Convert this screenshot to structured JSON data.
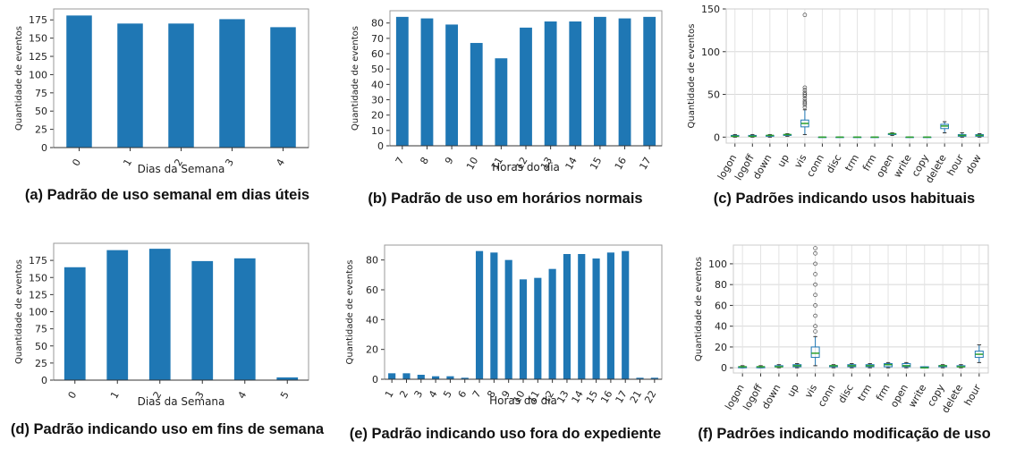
{
  "chart_data": [
    {
      "type": "bar",
      "caption": "(a) Padrão de uso semanal em dias úteis",
      "ylabel": "Quantidade de eventos",
      "xlabel": "Dias da Semana",
      "categories": [
        "0",
        "1",
        "2",
        "3",
        "4"
      ],
      "values": [
        181,
        170,
        170,
        176,
        165
      ],
      "color": "#1f77b4",
      "ylim": [
        0,
        190
      ],
      "yticks": [
        0,
        25,
        50,
        75,
        100,
        125,
        150,
        175
      ],
      "grid": false
    },
    {
      "type": "bar",
      "caption": "(b) Padrão de uso em horários normais",
      "ylabel": "Quantidade de eventos",
      "xlabel": "Horas do dia",
      "categories": [
        "7",
        "8",
        "9",
        "10",
        "11",
        "12",
        "13",
        "14",
        "15",
        "16",
        "17"
      ],
      "values": [
        84,
        83,
        79,
        67,
        57,
        77,
        81,
        81,
        84,
        83,
        84
      ],
      "color": "#1f77b4",
      "ylim": [
        0,
        88
      ],
      "yticks": [
        0,
        10,
        20,
        30,
        40,
        50,
        60,
        70,
        80
      ],
      "grid": false
    },
    {
      "type": "box",
      "caption": "(c) Padrões indicando usos habituais",
      "ylabel": "Quantidade de eventos",
      "categories": [
        "logon",
        "logoff",
        "down",
        "up",
        "vis",
        "conn",
        "disc",
        "trm",
        "frm",
        "open",
        "write",
        "copy",
        "delete",
        "hour",
        "dow"
      ],
      "boxes": [
        {
          "whislo": 0,
          "q1": 1,
          "med": 1,
          "q3": 2,
          "whishi": 3,
          "fliers": []
        },
        {
          "whislo": 0,
          "q1": 1,
          "med": 1,
          "q3": 2,
          "whishi": 3,
          "fliers": []
        },
        {
          "whislo": 0,
          "q1": 1,
          "med": 2,
          "q3": 2,
          "whishi": 3,
          "fliers": []
        },
        {
          "whislo": 1,
          "q1": 2,
          "med": 3,
          "q3": 3,
          "whishi": 4,
          "fliers": []
        },
        {
          "whislo": 3,
          "q1": 12,
          "med": 16,
          "q3": 20,
          "whishi": 32,
          "fliers": [
            35,
            38,
            40,
            42,
            45,
            48,
            50,
            52,
            55,
            58,
            143
          ]
        },
        {
          "whislo": 0,
          "q1": 0,
          "med": 0,
          "q3": 0,
          "whishi": 0,
          "fliers": []
        },
        {
          "whislo": 0,
          "q1": 0,
          "med": 0,
          "q3": 0,
          "whishi": 0,
          "fliers": []
        },
        {
          "whislo": 0,
          "q1": 0,
          "med": 0,
          "q3": 0,
          "whishi": 0,
          "fliers": []
        },
        {
          "whislo": 0,
          "q1": 0,
          "med": 0,
          "q3": 0,
          "whishi": 0,
          "fliers": []
        },
        {
          "whislo": 2,
          "q1": 3,
          "med": 4,
          "q3": 4,
          "whishi": 5,
          "fliers": []
        },
        {
          "whislo": 0,
          "q1": 0,
          "med": 0,
          "q3": 0,
          "whishi": 0,
          "fliers": []
        },
        {
          "whislo": 0,
          "q1": 0,
          "med": 0,
          "q3": 0,
          "whishi": 0,
          "fliers": []
        },
        {
          "whislo": 5,
          "q1": 10,
          "med": 13,
          "q3": 15,
          "whishi": 18,
          "fliers": []
        },
        {
          "whislo": 0,
          "q1": 1,
          "med": 2,
          "q3": 3,
          "whishi": 5,
          "fliers": []
        },
        {
          "whislo": 0,
          "q1": 1,
          "med": 2,
          "q3": 3,
          "whishi": 4,
          "fliers": []
        }
      ],
      "color": "#1f77b4",
      "median_color": "#2ca02c",
      "ylim": [
        -7,
        150
      ],
      "yticks": [
        0,
        50,
        100,
        150
      ],
      "grid": true
    },
    {
      "type": "bar",
      "caption": "(d) Padrão indicando uso em fins de semana",
      "ylabel": "Quantidade de eventos",
      "xlabel": "Dias da Semana",
      "categories": [
        "0",
        "1",
        "2",
        "3",
        "4",
        "5"
      ],
      "values": [
        165,
        190,
        192,
        174,
        178,
        4
      ],
      "color": "#1f77b4",
      "ylim": [
        0,
        200
      ],
      "yticks": [
        0,
        25,
        50,
        75,
        100,
        125,
        150,
        175
      ],
      "grid": false
    },
    {
      "type": "bar",
      "caption": "(e) Padrão indicando uso fora do expediente",
      "ylabel": "Quantidade de eventos",
      "xlabel": "Horas do dia",
      "categories": [
        "1",
        "2",
        "3",
        "4",
        "5",
        "6",
        "7",
        "8",
        "9",
        "10",
        "11",
        "12",
        "13",
        "14",
        "15",
        "16",
        "17",
        "21",
        "22"
      ],
      "values": [
        4,
        4,
        3,
        2,
        2,
        1,
        86,
        85,
        80,
        67,
        68,
        74,
        84,
        84,
        81,
        85,
        86,
        1,
        1
      ],
      "color": "#1f77b4",
      "ylim": [
        0,
        90
      ],
      "yticks": [
        0,
        20,
        40,
        60,
        80
      ],
      "grid": false
    },
    {
      "type": "box",
      "caption": "(f) Padrões indicando modificação de uso",
      "ylabel": "Quantidade de eventos",
      "categories": [
        "logon",
        "logoff",
        "down",
        "up",
        "vis",
        "conn",
        "disc",
        "trm",
        "frm",
        "open",
        "write",
        "copy",
        "delete",
        "hour"
      ],
      "boxes": [
        {
          "whislo": 0,
          "q1": 0,
          "med": 1,
          "q3": 1,
          "whishi": 2,
          "fliers": []
        },
        {
          "whislo": 0,
          "q1": 0,
          "med": 1,
          "q3": 1,
          "whishi": 2,
          "fliers": []
        },
        {
          "whislo": 0,
          "q1": 1,
          "med": 1,
          "q3": 2,
          "whishi": 3,
          "fliers": []
        },
        {
          "whislo": 0,
          "q1": 1,
          "med": 2,
          "q3": 3,
          "whishi": 4,
          "fliers": []
        },
        {
          "whislo": 2,
          "q1": 10,
          "med": 14,
          "q3": 20,
          "whishi": 30,
          "fliers": [
            35,
            40,
            50,
            60,
            70,
            80,
            90,
            100,
            110,
            115
          ]
        },
        {
          "whislo": 0,
          "q1": 1,
          "med": 2,
          "q3": 2,
          "whishi": 3,
          "fliers": []
        },
        {
          "whislo": 0,
          "q1": 1,
          "med": 2,
          "q3": 3,
          "whishi": 4,
          "fliers": []
        },
        {
          "whislo": 0,
          "q1": 1,
          "med": 2,
          "q3": 3,
          "whishi": 4,
          "fliers": []
        },
        {
          "whislo": 0,
          "q1": 1,
          "med": 3,
          "q3": 4,
          "whishi": 5,
          "fliers": []
        },
        {
          "whislo": 0,
          "q1": 1,
          "med": 2,
          "q3": 4,
          "whishi": 5,
          "fliers": []
        },
        {
          "whislo": 0,
          "q1": 0,
          "med": 0,
          "q3": 1,
          "whishi": 1,
          "fliers": []
        },
        {
          "whislo": 0,
          "q1": 1,
          "med": 2,
          "q3": 2,
          "whishi": 3,
          "fliers": []
        },
        {
          "whislo": 0,
          "q1": 1,
          "med": 1,
          "q3": 2,
          "whishi": 3,
          "fliers": []
        },
        {
          "whislo": 5,
          "q1": 10,
          "med": 13,
          "q3": 16,
          "whishi": 22,
          "fliers": []
        }
      ],
      "color": "#1f77b4",
      "median_color": "#2ca02c",
      "ylim": [
        -5,
        118
      ],
      "yticks": [
        0,
        20,
        40,
        60,
        80,
        100
      ],
      "grid": true
    }
  ]
}
